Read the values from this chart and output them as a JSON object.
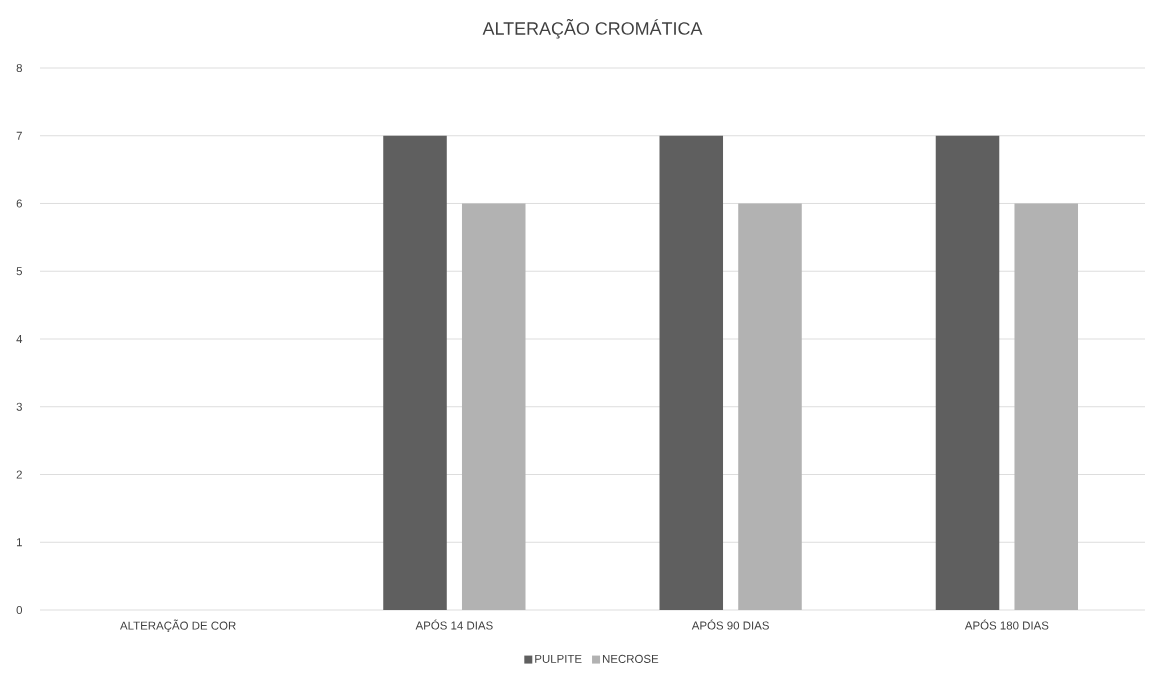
{
  "chart_data": {
    "type": "bar",
    "title": "ALTERAÇÃO CROMÁTICA",
    "categories": [
      "ALTERAÇÃO DE COR",
      "APÓS 14 DIAS",
      "APÓS 90 DIAS",
      "APÓS 180 DIAS"
    ],
    "series": [
      {
        "name": "PULPITE",
        "color": "#5f5f5f",
        "values": [
          0,
          7,
          7,
          7
        ]
      },
      {
        "name": "NECROSE",
        "color": "#b2b2b2",
        "values": [
          0,
          6,
          6,
          6
        ]
      }
    ],
    "ylim": [
      0,
      8
    ],
    "yticks": [
      0,
      1,
      2,
      3,
      4,
      5,
      6,
      7,
      8
    ],
    "grid": "y",
    "legend": "bottom"
  }
}
